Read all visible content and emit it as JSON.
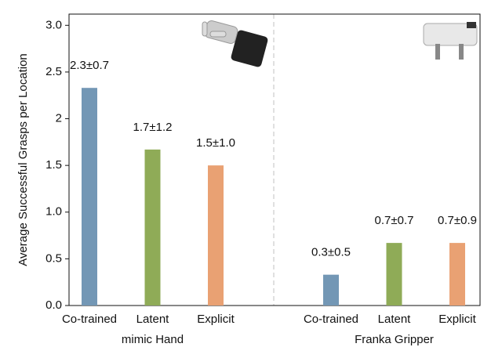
{
  "chart_data": {
    "type": "bar",
    "y_label": "Average Successful Grasps per Location",
    "categories": [
      "Co-trained",
      "Latent",
      "Explicit",
      "Co-trained",
      "Latent",
      "Explicit"
    ],
    "groups": [
      "mimic Hand",
      "Franka Gripper"
    ],
    "values": [
      2.33,
      1.67,
      1.5,
      0.33,
      0.67,
      0.67
    ],
    "value_labels": [
      "2.3±0.7",
      "1.7±1.2",
      "1.5±1.0",
      "0.3±0.5",
      "0.7±0.7",
      "0.7±0.9"
    ],
    "colors": [
      "#7397b5",
      "#8fab57",
      "#e9a173",
      "#7397b5",
      "#8fab57",
      "#e9a173"
    ],
    "ylim": [
      0,
      3.12
    ],
    "yticks": [
      {
        "value": 0,
        "label": "0.0"
      },
      0.5,
      {
        "value": 1,
        "label": "1.0"
      },
      1.5,
      2,
      2.5,
      {
        "value": 3,
        "label": "3.0"
      }
    ]
  }
}
